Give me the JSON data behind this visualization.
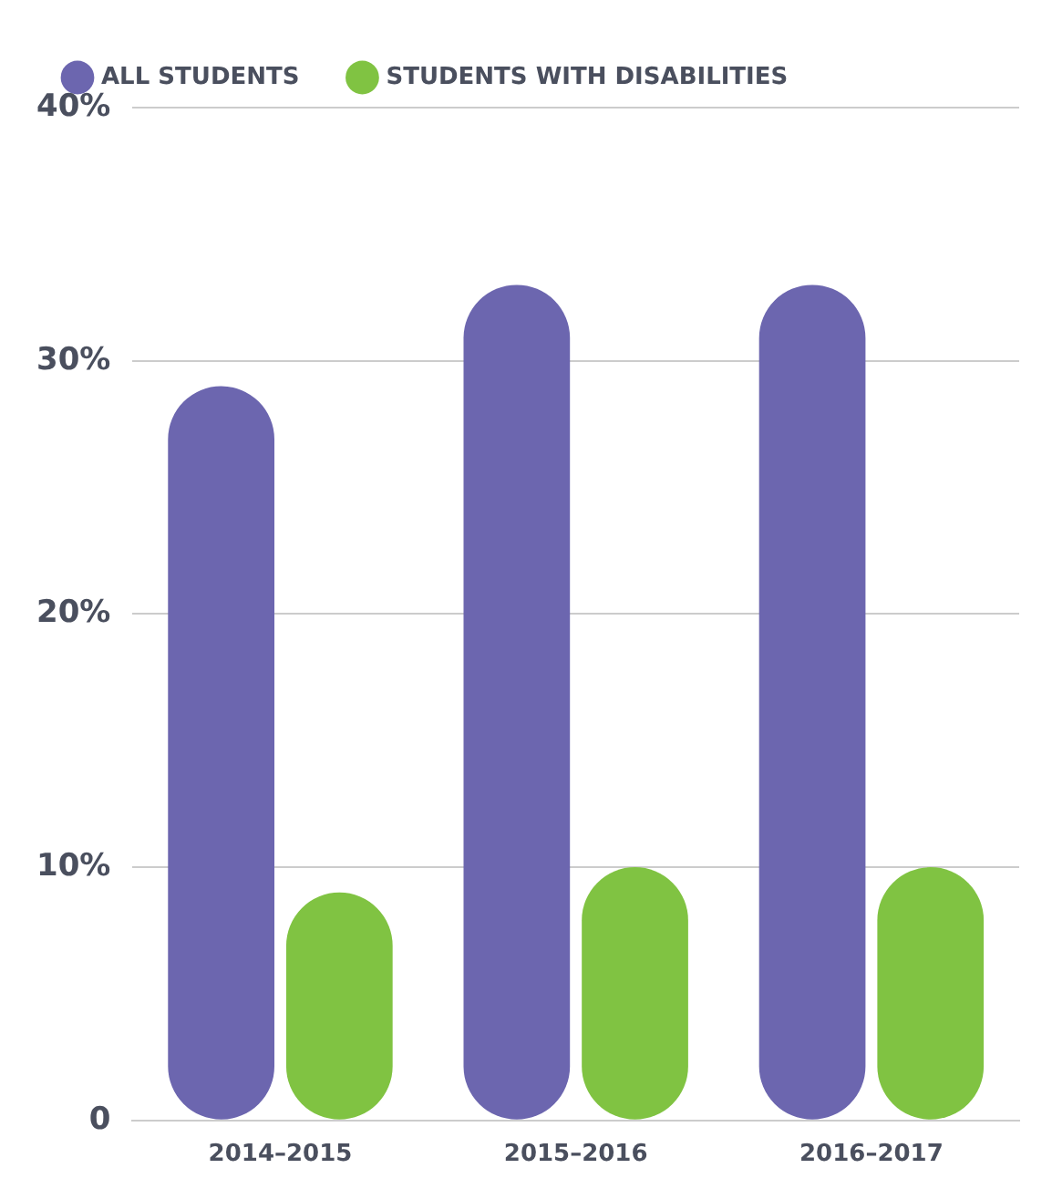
{
  "chart_data": {
    "type": "bar",
    "categories": [
      "2014–2015",
      "2015–2016",
      "2016–2017"
    ],
    "series": [
      {
        "name": "ALL STUDENTS",
        "color": "#6c66af",
        "values": [
          29,
          33,
          33
        ]
      },
      {
        "name": "STUDENTS WITH DISABILITIES",
        "color": "#80c342",
        "values": [
          9,
          10,
          10
        ]
      }
    ],
    "ylim": [
      0,
      40
    ],
    "yticks": [
      0,
      {
        "value": 10,
        "label": "10%"
      },
      {
        "value": 20,
        "label": "20%"
      },
      {
        "value": 30,
        "label": "30%"
      },
      {
        "value": 40,
        "label": "40%"
      }
    ],
    "grid": "y",
    "legend": "top left"
  }
}
